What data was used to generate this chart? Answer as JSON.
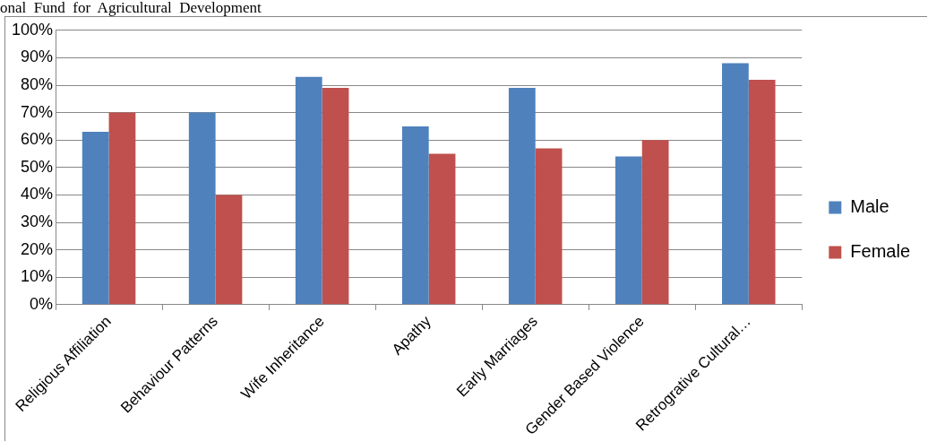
{
  "chart_data": {
    "type": "bar",
    "annotations": [
      "onal  Fund  for  Agricultural  Development"
    ],
    "categories": [
      "Religious Affiliation",
      "Behaviour Patterns",
      "Wife Inheritance",
      "Apathy",
      "Early Marriages",
      "Gender Based Violence",
      "Retrogrative Cultural…"
    ],
    "series": [
      {
        "name": "Male",
        "color": "#4f81bd",
        "values": [
          63,
          70,
          83,
          65,
          79,
          54,
          88
        ]
      },
      {
        "name": "Female",
        "color": "#c0504d",
        "values": [
          70,
          40,
          79,
          55,
          57,
          60,
          82
        ]
      }
    ],
    "ylim": [
      0,
      100
    ],
    "yticks": [
      {
        "value": 0,
        "label": "0%"
      },
      {
        "value": 10,
        "label": "10%"
      },
      {
        "value": 20,
        "label": "20%"
      },
      {
        "value": 30,
        "label": "30%"
      },
      {
        "value": 40,
        "label": "40%"
      },
      {
        "value": 50,
        "label": "50%"
      },
      {
        "value": 60,
        "label": "60%"
      },
      {
        "value": 70,
        "label": "70%"
      },
      {
        "value": 80,
        "label": "80%"
      },
      {
        "value": 90,
        "label": "90%"
      },
      {
        "value": 100,
        "label": "100%"
      }
    ],
    "grid": "y",
    "legend": "right"
  }
}
